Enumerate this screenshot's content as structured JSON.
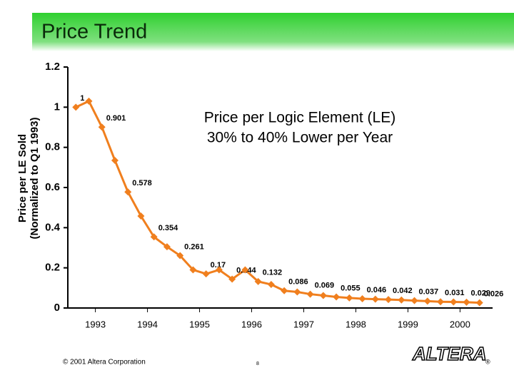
{
  "chart_data": {
    "type": "line",
    "title": "Price Trend",
    "ylabel": [
      "Price per LE Sold",
      "(Normalized to Q1 1993)"
    ],
    "annotation": [
      "Price per Logic Element (LE)",
      "30% to 40% Lower per Year"
    ],
    "x": [
      1993,
      1993.25,
      1993.5,
      1993.75,
      1994,
      1994.25,
      1994.5,
      1994.75,
      1995,
      1995.25,
      1995.5,
      1995.75,
      1996,
      1996.25,
      1996.5,
      1996.75,
      1997,
      1997.25,
      1997.5,
      1997.75,
      1998,
      1998.25,
      1998.5,
      1998.75,
      1999,
      1999.25,
      1999.5,
      1999.75,
      2000,
      2000.25,
      2000.5,
      2000.75
    ],
    "series": [
      {
        "name": "Price per LE",
        "color": "#f07f1e",
        "values": [
          1,
          1.03,
          0.901,
          0.735,
          0.578,
          0.458,
          0.354,
          0.305,
          0.261,
          0.19,
          0.17,
          0.19,
          0.144,
          0.19,
          0.132,
          0.117,
          0.086,
          0.08,
          0.069,
          0.062,
          0.055,
          0.05,
          0.046,
          0.044,
          0.042,
          0.04,
          0.037,
          0.034,
          0.031,
          0.03,
          0.029,
          0.026
        ],
        "value_labels": [
          "1",
          null,
          "0.901",
          null,
          "0.578",
          null,
          "0.354",
          null,
          "0.261",
          null,
          "0.17",
          null,
          "0.144",
          null,
          "0.132",
          null,
          "0.086",
          null,
          "0.069",
          null,
          "0.055",
          null,
          "0.046",
          null,
          "0.042",
          null,
          "0.037",
          null,
          "0.031",
          null,
          "0.029",
          "0.026"
        ]
      }
    ],
    "xlim": [
      1992.75,
      2001
    ],
    "xticks": [
      {
        "value": 1993.375,
        "label": "1993"
      },
      {
        "value": 1994.375,
        "label": "1994"
      },
      {
        "value": 1995.375,
        "label": "1995"
      },
      {
        "value": 1996.375,
        "label": "1996"
      },
      {
        "value": 1997.375,
        "label": "1997"
      },
      {
        "value": 1998.375,
        "label": "1998"
      },
      {
        "value": 1999.375,
        "label": "1999"
      },
      {
        "value": 2000.375,
        "label": "2000"
      }
    ],
    "ylim": [
      0,
      1.2
    ],
    "yticks": [
      0,
      0.2,
      0.4,
      0.6,
      0.8,
      1,
      1.2
    ],
    "grid": false
  },
  "footer": {
    "copyright": "© 2001 Altera Corporation",
    "page": "8",
    "logo": "ALTERA"
  }
}
